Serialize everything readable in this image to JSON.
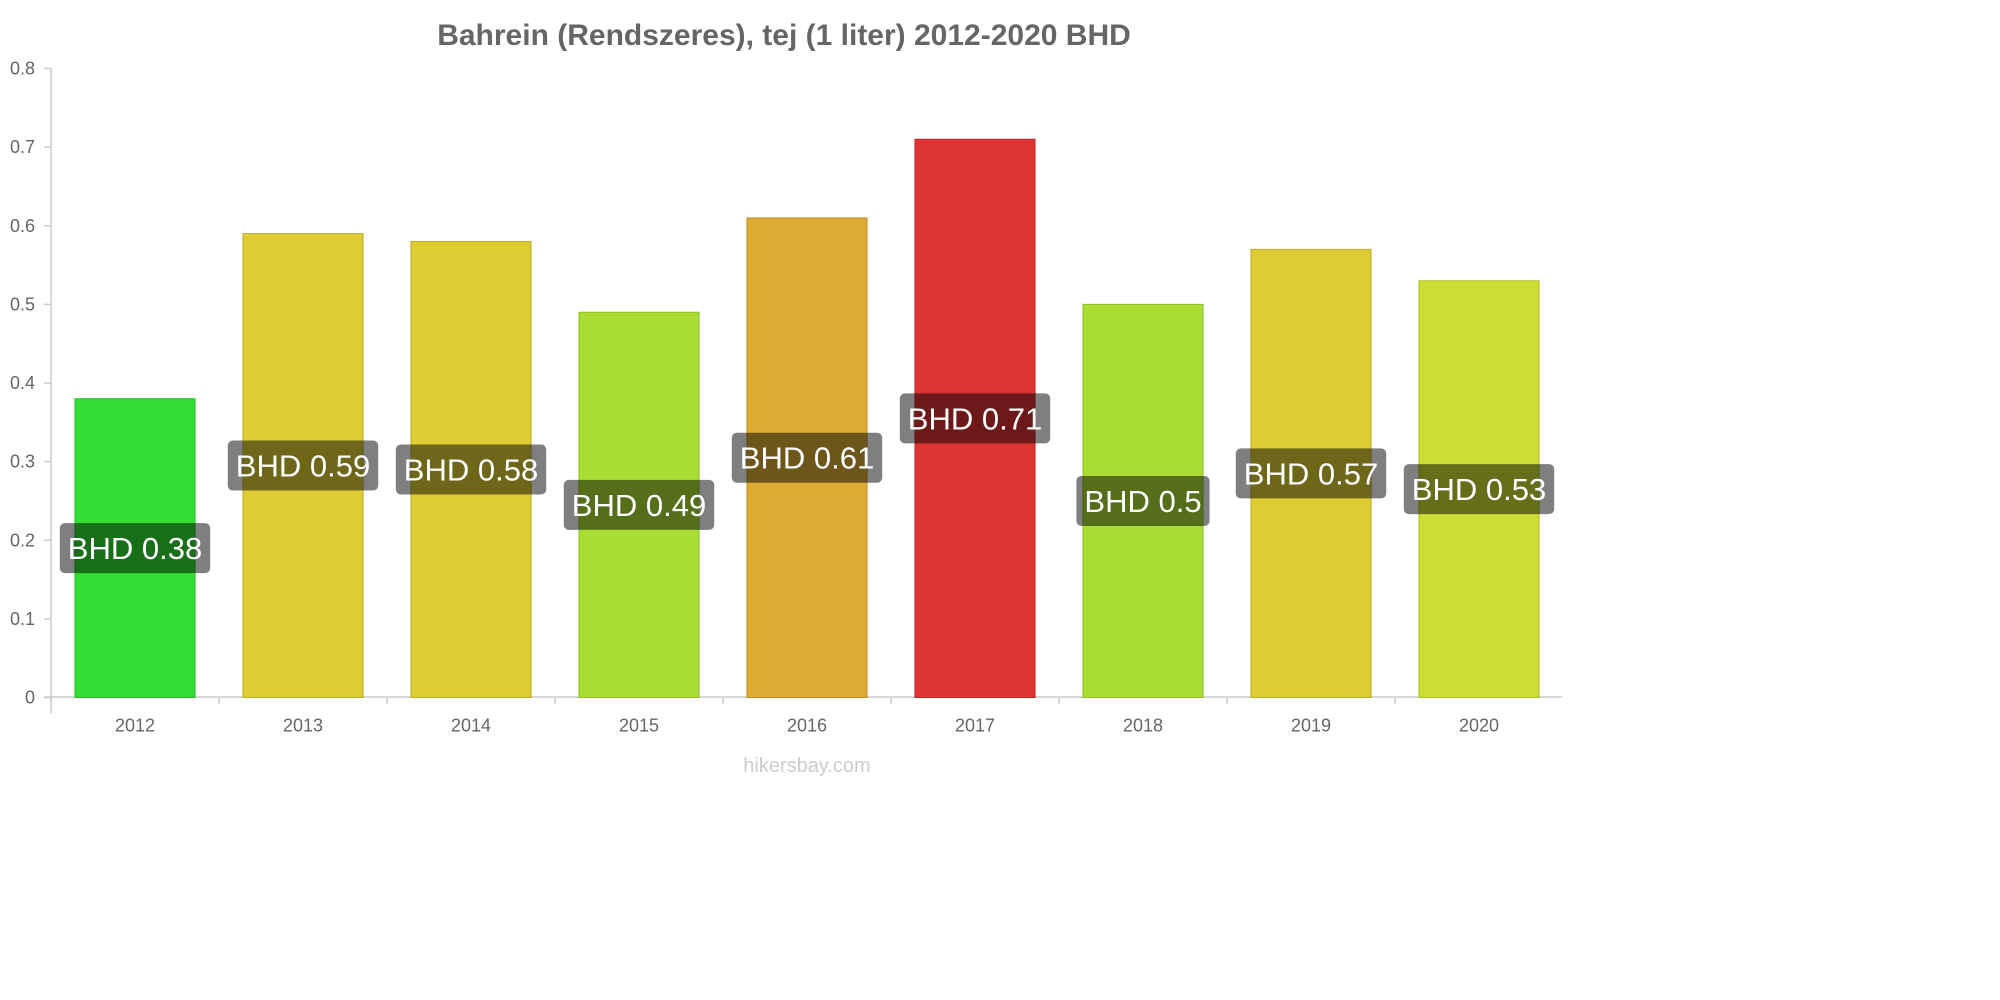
{
  "chart_data": {
    "type": "bar",
    "title": "Bahrein (Rendszeres), tej (1 liter) 2012-2020 BHD",
    "categories": [
      "2012",
      "2013",
      "2014",
      "2015",
      "2016",
      "2017",
      "2018",
      "2019",
      "2020"
    ],
    "values": [
      0.38,
      0.59,
      0.58,
      0.49,
      0.61,
      0.71,
      0.5,
      0.57,
      0.53
    ],
    "data_labels": [
      "BHD 0.38",
      "BHD 0.59",
      "BHD 0.58",
      "BHD 0.49",
      "BHD 0.61",
      "BHD 0.71",
      "BHD 0.5",
      "BHD 0.57",
      "BHD 0.53"
    ],
    "bar_colors": [
      "#33dd33",
      "#ddcc33",
      "#ddcc33",
      "#aadd33",
      "#ddaa33",
      "#dd3333",
      "#aadd33",
      "#ddcc33",
      "#ccdd33"
    ],
    "ylim": [
      0,
      0.8
    ],
    "yticks": [
      "0",
      "0.1",
      "0.2",
      "0.3",
      "0.4",
      "0.5",
      "0.6",
      "0.7",
      "0.8"
    ],
    "xlabel": "",
    "ylabel": "",
    "grid": false,
    "legend": "none"
  },
  "watermark": "hikersbay.com"
}
